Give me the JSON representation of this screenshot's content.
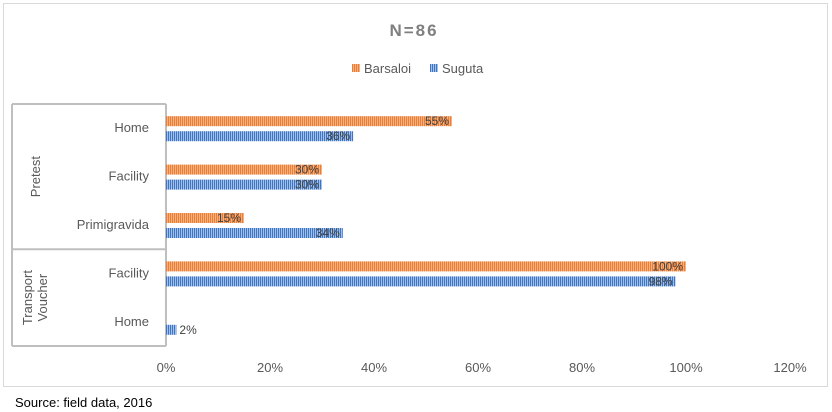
{
  "chart_data": {
    "type": "bar",
    "orientation": "horizontal",
    "title": "N=86",
    "legend_position": "top",
    "groups": [
      {
        "label": "Pretest",
        "categories": [
          "Home",
          "Facility",
          "Primigravida"
        ]
      },
      {
        "label": "Transport Voucher",
        "categories": [
          "Facility",
          "Home"
        ]
      }
    ],
    "categories": [
      "Home",
      "Facility",
      "Primigravida",
      "Facility",
      "Home"
    ],
    "series": [
      {
        "name": "Barsaloi",
        "color": "#ed7d31",
        "values": [
          55,
          30,
          15,
          100,
          0
        ],
        "labels": [
          "55%",
          "30%",
          "15%",
          "100%",
          ""
        ]
      },
      {
        "name": "Suguta",
        "color": "#4472c4",
        "values": [
          36,
          30,
          34,
          98,
          2
        ],
        "labels": [
          "36%",
          "30%",
          "34%",
          "98%",
          "2%"
        ]
      }
    ],
    "x_ticks": [
      "0%",
      "20%",
      "40%",
      "60%",
      "80%",
      "100%",
      "120%"
    ],
    "xlim": [
      0,
      120
    ],
    "grid": false
  },
  "source": "Source: field data, 2016"
}
